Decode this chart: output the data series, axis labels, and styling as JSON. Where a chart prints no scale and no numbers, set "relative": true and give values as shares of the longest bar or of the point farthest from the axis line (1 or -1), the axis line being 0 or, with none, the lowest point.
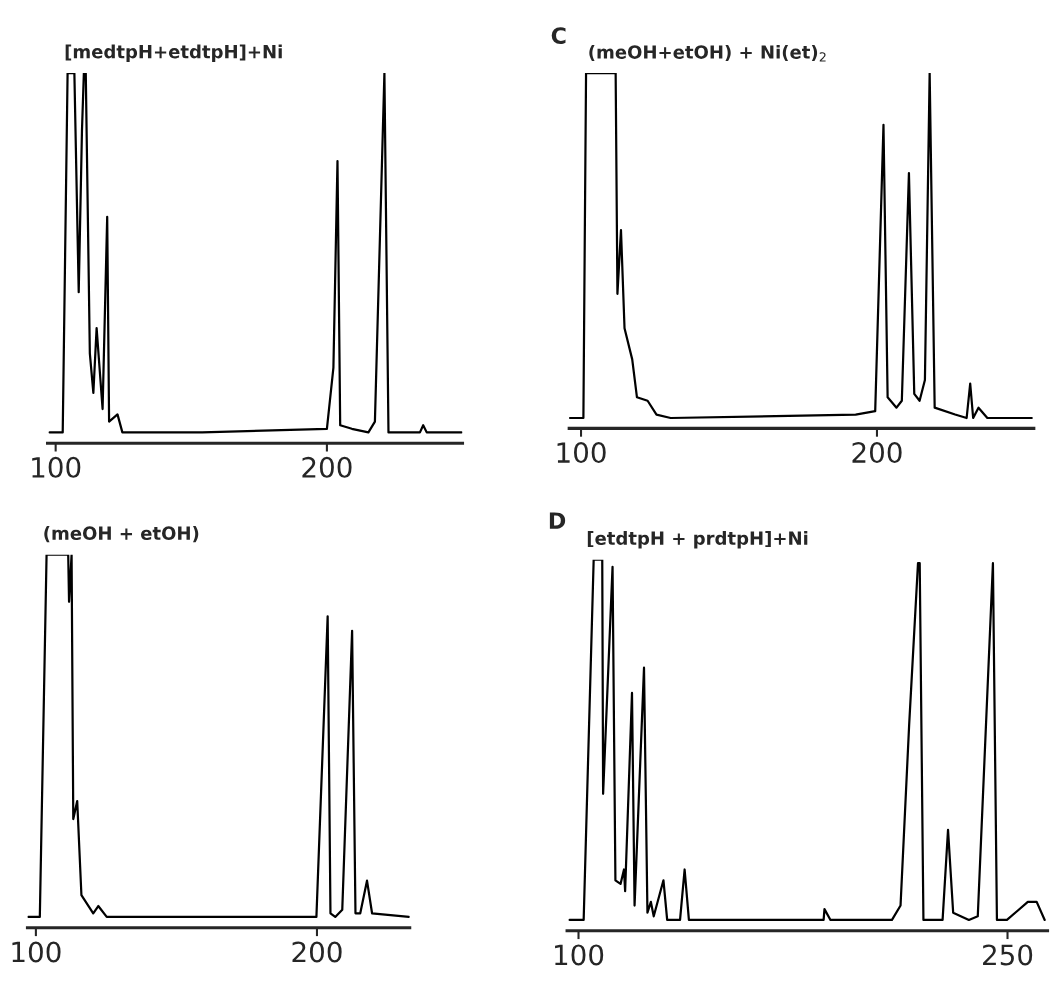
{
  "chart_data": [
    {
      "type": "line",
      "title": "[medtpH+etdtpH]+Ni",
      "relative": true,
      "xlim": [
        97,
        250
      ],
      "xticks": [
        100,
        200
      ],
      "x": [
        97.8,
        102.6,
        104.4,
        106.9,
        108.5,
        109.7,
        110.4,
        111.1,
        112.6,
        113.9,
        115.1,
        117.3,
        119.0,
        119.7,
        122.8,
        124.6,
        154,
        200.0,
        202.4,
        203.9,
        204.9,
        209.2,
        215.3,
        217.7,
        221.2,
        222.7,
        234.3,
        235.5,
        236.8,
        249.6
      ],
      "series": [
        {
          "color": "#000000",
          "values": [
            0,
            0,
            1.0,
            1.0,
            0.39,
            0.84,
            1.0,
            1.0,
            0.22,
            0.11,
            0.29,
            0.065,
            0.6,
            0.03,
            0.05,
            0,
            0,
            0.01,
            0.18,
            0.755,
            0.02,
            0.01,
            0,
            0.03,
            1.0,
            0,
            0,
            0.02,
            0,
            0
          ]
        }
      ]
    },
    {
      "type": "line",
      "title": "(meOH+etOH) + Ni(et)$_{2}$",
      "annotations": [
        "C"
      ],
      "relative": true,
      "xlim": [
        96,
        253
      ],
      "xticks": [
        100,
        200
      ],
      "x": [
        96.0,
        100.8,
        101.7,
        111.7,
        112.3,
        113.5,
        114.7,
        117.3,
        118.9,
        122.5,
        125.5,
        130.3,
        192.8,
        199.4,
        202.2,
        203.6,
        206.6,
        208.4,
        210.8,
        212.6,
        214.4,
        216.2,
        217.8,
        219.5,
        226.4,
        230.3,
        231.5,
        232.5,
        234.3,
        237.3,
        252.3
      ],
      "series": [
        {
          "color": "#000000",
          "values": [
            0,
            0,
            1,
            1,
            0.36,
            0.545,
            0.26,
            0.17,
            0.06,
            0.05,
            0.01,
            0,
            0.01,
            0.02,
            0.85,
            0.06,
            0.03,
            0.05,
            0.71,
            0.07,
            0.05,
            0.11,
            1,
            0.03,
            0.01,
            0,
            0.1,
            0,
            0.03,
            0,
            0
          ]
        }
      ]
    },
    {
      "type": "line",
      "title": "(meOH + etOH)",
      "relative": true,
      "xlim": [
        97,
        233
      ],
      "xticks": [
        100,
        200
      ],
      "x": [
        97.3,
        101.4,
        103.8,
        111.5,
        111.8,
        112.7,
        113.3,
        114.7,
        116.2,
        120.4,
        122.2,
        125.2,
        190.5,
        199.8,
        203.8,
        204.8,
        206.5,
        209.0,
        212.5,
        213.7,
        215.4,
        217.8,
        219.6,
        232.7
      ],
      "series": [
        {
          "color": "#000000",
          "values": [
            0,
            0,
            1,
            1,
            0.87,
            1,
            0.27,
            0.32,
            0.06,
            0.01,
            0.03,
            0,
            0,
            0,
            0.83,
            0.01,
            0,
            0.02,
            0.79,
            0.01,
            0.01,
            0.1,
            0.01,
            0
          ]
        }
      ]
    },
    {
      "type": "line",
      "title": "[etdtpH + prdtpH]+Ni",
      "annotations": [
        "D"
      ],
      "relative": true,
      "xlim": [
        96,
        264
      ],
      "xticks": [
        100,
        250
      ],
      "x": [
        96.9,
        101.8,
        105.3,
        108.3,
        108.6,
        111.9,
        112.9,
        114.7,
        115.9,
        116.3,
        118.7,
        119.6,
        122.9,
        124.1,
        125.3,
        126.3,
        129.7,
        131.0,
        135.5,
        137.1,
        138.6,
        170.4,
        185.7,
        186.0,
        188.1,
        209.6,
        212.6,
        215.6,
        218.7,
        219.3,
        220.6,
        227.3,
        229.2,
        231.0,
        236.5,
        239.6,
        244.9,
        246.3,
        249.8,
        257.1,
        260.2,
        263.0
      ],
      "series": [
        {
          "color": "#000000",
          "values": [
            0,
            0,
            1,
            1,
            0.35,
            0.98,
            0.11,
            0.1,
            0.14,
            0.08,
            0.63,
            0.04,
            0.7,
            0.02,
            0.05,
            0.01,
            0.11,
            0,
            0,
            0.14,
            0,
            0,
            0,
            0.03,
            0,
            0,
            0.04,
            0.54,
            0.99,
            0.99,
            0,
            0,
            0.25,
            0.02,
            0,
            0.01,
            0.99,
            0,
            0,
            0.05,
            0.05,
            0
          ]
        }
      ]
    }
  ]
}
